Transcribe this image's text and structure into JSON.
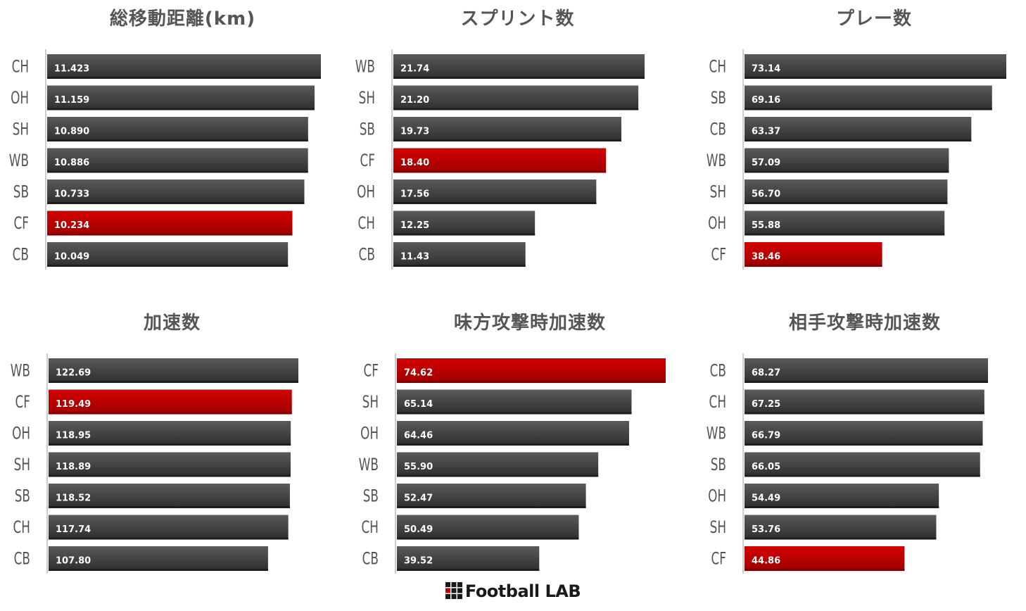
{
  "chart_data": [
    {
      "type": "bar",
      "title": "総移動距離(km)",
      "categories": [
        "CH",
        "OH",
        "SH",
        "WB",
        "SB",
        "CF",
        "CB"
      ],
      "values": [
        11.423,
        11.159,
        10.89,
        10.886,
        10.733,
        10.234,
        10.049
      ],
      "value_labels": [
        "11.423",
        "11.159",
        "10.890",
        "10.886",
        "10.733",
        "10.234",
        "10.049"
      ],
      "highlight": "CF"
    },
    {
      "type": "bar",
      "title": "スプリント数",
      "categories": [
        "WB",
        "SH",
        "SB",
        "CF",
        "OH",
        "CH",
        "CB"
      ],
      "values": [
        21.74,
        21.2,
        19.73,
        18.4,
        17.56,
        12.25,
        11.43
      ],
      "value_labels": [
        "21.74",
        "21.20",
        "19.73",
        "18.40",
        "17.56",
        "12.25",
        "11.43"
      ],
      "highlight": "CF"
    },
    {
      "type": "bar",
      "title": "プレー数",
      "categories": [
        "CH",
        "SB",
        "CB",
        "WB",
        "SH",
        "OH",
        "CF"
      ],
      "values": [
        73.14,
        69.16,
        63.37,
        57.09,
        56.7,
        55.88,
        38.46
      ],
      "value_labels": [
        "73.14",
        "69.16",
        "63.37",
        "57.09",
        "56.70",
        "55.88",
        "38.46"
      ],
      "highlight": "CF"
    },
    {
      "type": "bar",
      "title": "加速数",
      "categories": [
        "WB",
        "CF",
        "OH",
        "SH",
        "SB",
        "CH",
        "CB"
      ],
      "values": [
        122.69,
        119.49,
        118.95,
        118.89,
        118.52,
        117.74,
        107.8
      ],
      "value_labels": [
        "122.69",
        "119.49",
        "118.95",
        "118.89",
        "118.52",
        "117.74",
        "107.80"
      ],
      "highlight": "CF"
    },
    {
      "type": "bar",
      "title": "味方攻撃時加速数",
      "categories": [
        "CF",
        "SH",
        "OH",
        "WB",
        "SB",
        "CH",
        "CB"
      ],
      "values": [
        74.62,
        65.14,
        64.46,
        55.9,
        52.47,
        50.49,
        39.52
      ],
      "value_labels": [
        "74.62",
        "65.14",
        "64.46",
        "55.90",
        "52.47",
        "50.49",
        "39.52"
      ],
      "highlight": "CF"
    },
    {
      "type": "bar",
      "title": "相手攻撃時加速数",
      "categories": [
        "CB",
        "CH",
        "WB",
        "SB",
        "OH",
        "SH",
        "CF"
      ],
      "values": [
        68.27,
        67.25,
        66.79,
        66.05,
        54.49,
        53.76,
        44.86
      ],
      "value_labels": [
        "68.27",
        "67.25",
        "66.79",
        "66.05",
        "54.49",
        "53.76",
        "44.86"
      ],
      "highlight": "CF"
    }
  ],
  "colors": {
    "bar_default_top": "#5a5a5a",
    "bar_default_bottom": "#2e2e2e",
    "bar_highlight_top": "#d40000",
    "bar_highlight_bottom": "#9c0000",
    "axis": "#cccccc"
  },
  "footer": {
    "brand": "Football LAB"
  }
}
